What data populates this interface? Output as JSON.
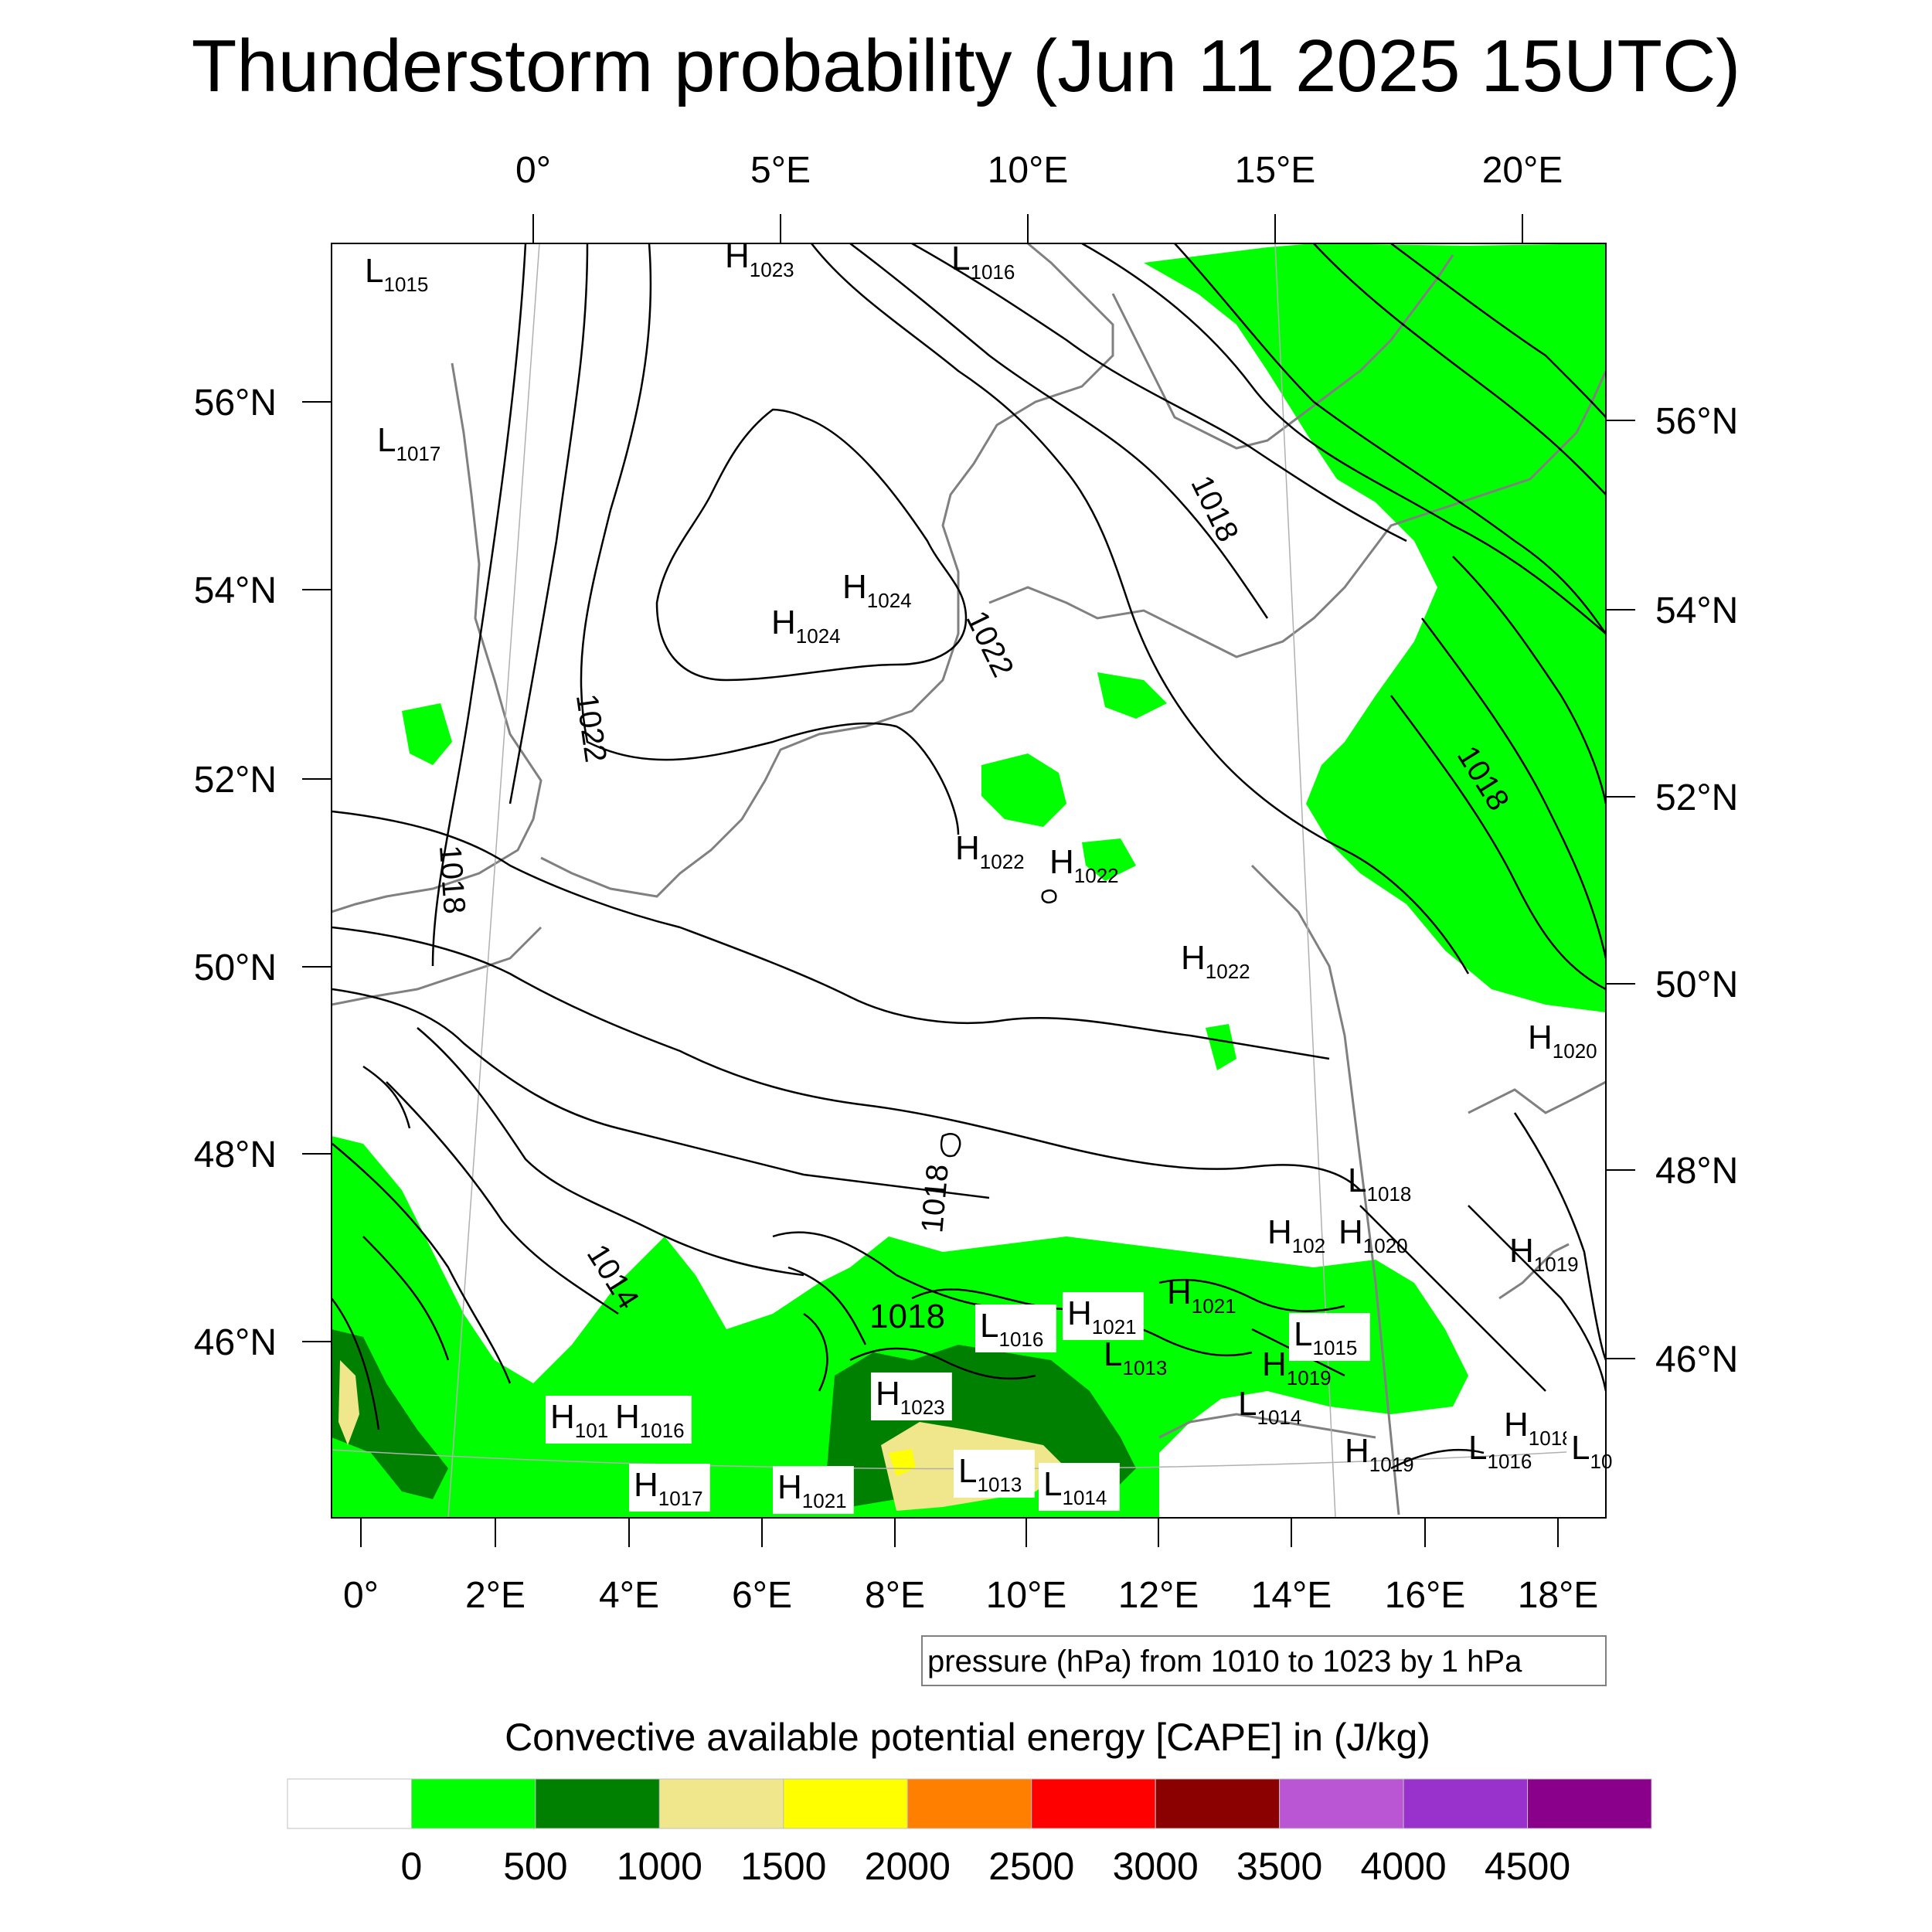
{
  "title": "Thunderstorm probability (Jun 11 2025 15UTC)",
  "top_lon_labels": [
    "0°",
    "5°E",
    "10°E",
    "15°E",
    "20°E"
  ],
  "bottom_lon_labels": [
    "0°",
    "2°E",
    "4°E",
    "6°E",
    "8°E",
    "10°E",
    "12°E",
    "14°E",
    "16°E",
    "18°E"
  ],
  "left_lat_labels": [
    "56°N",
    "54°N",
    "52°N",
    "50°N",
    "48°N",
    "46°N"
  ],
  "right_lat_labels": [
    "56°N",
    "54°N",
    "52°N",
    "50°N",
    "48°N",
    "46°N"
  ],
  "contour_value_labels": [
    "1022",
    "1018",
    "1018",
    "1022",
    "1018",
    "1014",
    "1018",
    "1018"
  ],
  "pressure_centers": [
    {
      "letter": "L",
      "value": "1015"
    },
    {
      "letter": "H",
      "value": "1023"
    },
    {
      "letter": "L",
      "value": "1016"
    },
    {
      "letter": "L",
      "value": "1017"
    },
    {
      "letter": "H",
      "value": "1024"
    },
    {
      "letter": "H",
      "value": "1024"
    },
    {
      "letter": "H",
      "value": "1022"
    },
    {
      "letter": "H",
      "value": "1022"
    },
    {
      "letter": "H",
      "value": "1022"
    },
    {
      "letter": "H",
      "value": "1020"
    },
    {
      "letter": "L",
      "value": "1018"
    },
    {
      "letter": "H",
      "value": "102"
    },
    {
      "letter": "H",
      "value": "1020"
    },
    {
      "letter": "H",
      "value": "1019"
    },
    {
      "letter": "H",
      "value": "1021"
    },
    {
      "letter": "L",
      "value": "1016"
    },
    {
      "letter": "H",
      "value": "1021"
    },
    {
      "letter": "L",
      "value": "1015"
    },
    {
      "letter": "L",
      "value": "1013"
    },
    {
      "letter": "H",
      "value": "1019"
    },
    {
      "letter": "H",
      "value": "1023"
    },
    {
      "letter": "L",
      "value": "1014"
    },
    {
      "letter": "H",
      "value": "101"
    },
    {
      "letter": "H",
      "value": "1016"
    },
    {
      "letter": "H",
      "value": "1018"
    },
    {
      "letter": "L",
      "value": "1016"
    },
    {
      "letter": "H",
      "value": "1019"
    },
    {
      "letter": "L",
      "value": "10"
    },
    {
      "letter": "H",
      "value": "1017"
    },
    {
      "letter": "H",
      "value": "1021"
    },
    {
      "letter": "L",
      "value": "1013"
    },
    {
      "letter": "L",
      "value": "1014"
    }
  ],
  "contour_info": "pressure (hPa) from 1010 to 1023 by 1 hPa",
  "colorbar": {
    "title": "Convective available potential energy [CAPE] in (J/kg)",
    "colors": [
      "#ffffff",
      "#00ff00",
      "#008000",
      "#f0e68c",
      "#ffff00",
      "#ff8000",
      "#ff0000",
      "#8b0000",
      "#ba55d3",
      "#9932cc",
      "#8b008b"
    ],
    "tick_labels": [
      "0",
      "500",
      "1000",
      "1500",
      "2000",
      "2500",
      "3000",
      "3500",
      "4000",
      "4500"
    ]
  }
}
